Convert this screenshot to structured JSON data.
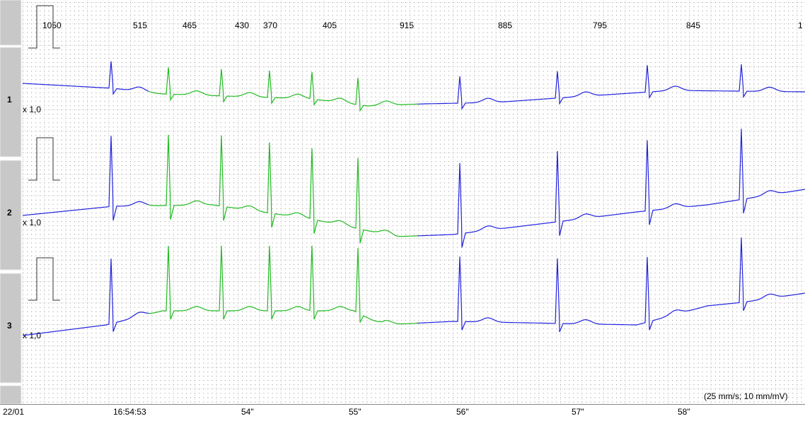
{
  "header": {
    "rr_intervals": [
      "1050",
      "515",
      "465",
      "430",
      "370",
      "405",
      "915",
      "885",
      "795",
      "845",
      "1"
    ]
  },
  "leads": [
    {
      "label": "1",
      "gain": "x 1,0"
    },
    {
      "label": "2",
      "gain": "x 1,0"
    },
    {
      "label": "3",
      "gain": "x 1,0"
    }
  ],
  "footer": {
    "speed": "(25 mm/s; 10 mm/mV)"
  },
  "time_axis": {
    "labels": [
      "22/01",
      "16:54:53",
      "54\"",
      "55\"",
      "56\"",
      "57\"",
      "58\""
    ]
  }
}
